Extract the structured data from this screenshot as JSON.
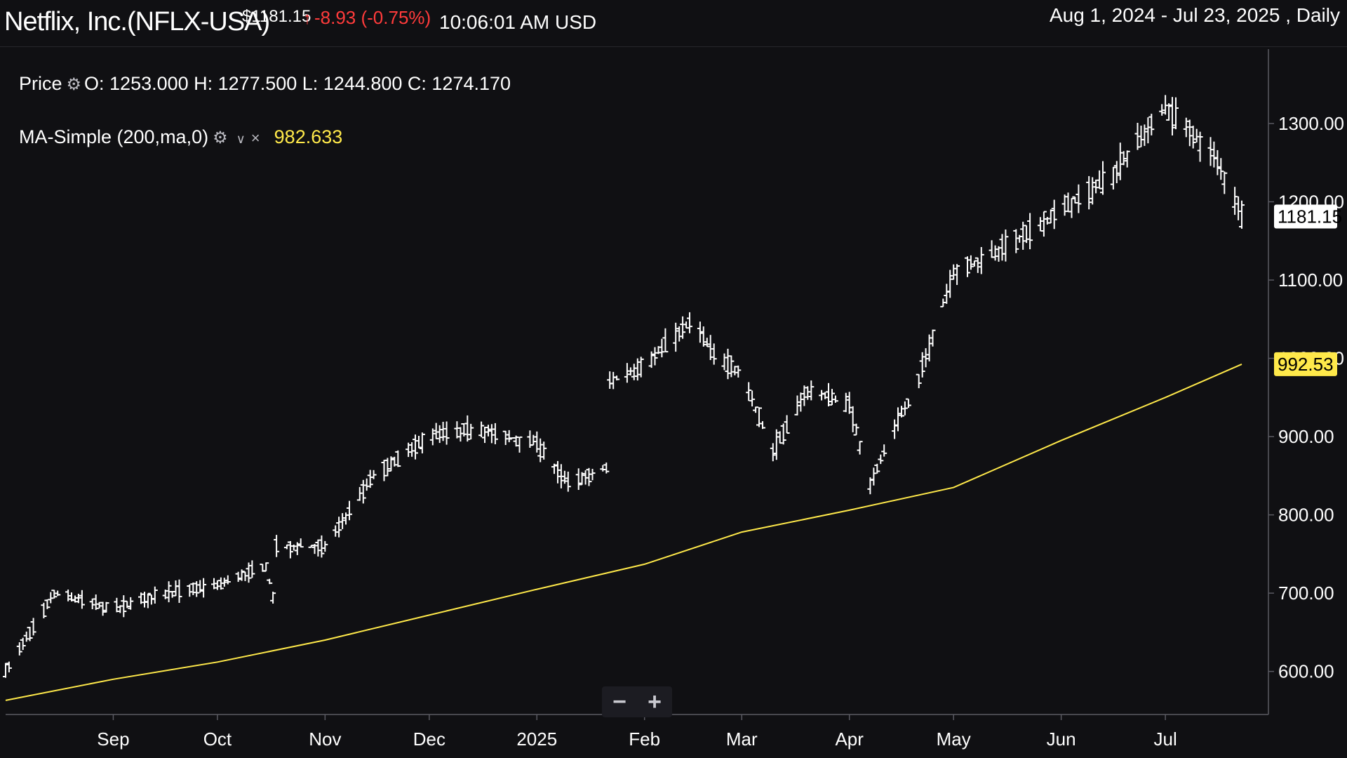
{
  "header": {
    "title": "Netflix, Inc.(NFLX-USA)",
    "price": "$1181.15",
    "change": "-8.93 (-0.75%)",
    "time": "10:06:01 AM USD",
    "range": "Aug 1, 2024 - Jul 23, 2025 , Daily"
  },
  "legend": {
    "price_label": "Price",
    "ohlc": "O: 1253.000 H: 1277.500 L: 1244.800 C: 1274.170",
    "ma_label": "MA-Simple (200,ma,0)",
    "ma_value": "982.633"
  },
  "zoom": {
    "minus": "−",
    "plus": "+"
  },
  "icons": {
    "settings": "gear-icon",
    "dropdown": "chevron-down-icon",
    "close": "close-icon",
    "change_direction": "arrow-up-icon"
  },
  "colors": {
    "background": "#101013",
    "candles": "#ffffff",
    "ma_line": "#ffe94a",
    "negative": "#ff3b3b",
    "last_price_tag": "#ffffff",
    "ma_tag": "#ffe94a"
  },
  "chart_data": {
    "type": "candlestick",
    "ylim": [
      545,
      1395
    ],
    "y_ticks": [
      "600.00",
      "700.00",
      "800.00",
      "900.00",
      "1000.00",
      "1100.00",
      "1200.00",
      "1300.00"
    ],
    "x_ticks": [
      "Sep",
      "Oct",
      "Nov",
      "Dec",
      "2025",
      "Feb",
      "Mar",
      "Apr",
      "May",
      "Jun",
      "Jul"
    ],
    "last_price_label": "1181.15",
    "ma_last_label": "992.53",
    "price_series": {
      "name": "Price",
      "dates": [
        "2024-08-01",
        "2024-08-15",
        "2024-09-01",
        "2024-09-15",
        "2024-10-01",
        "2024-10-15",
        "2024-10-17",
        "2024-10-18",
        "2024-11-01",
        "2024-11-15",
        "2024-12-01",
        "2024-12-15",
        "2025-01-01",
        "2025-01-10",
        "2025-01-21",
        "2025-01-22",
        "2025-02-01",
        "2025-02-15",
        "2025-02-20",
        "2025-03-01",
        "2025-03-10",
        "2025-03-20",
        "2025-04-01",
        "2025-04-07",
        "2025-04-15",
        "2025-04-20",
        "2025-05-01",
        "2025-05-15",
        "2025-06-01",
        "2025-06-15",
        "2025-07-01",
        "2025-07-15",
        "2025-07-23"
      ],
      "values": [
        600,
        700,
        680,
        700,
        710,
        735,
        695,
        760,
        760,
        850,
        900,
        910,
        890,
        840,
        860,
        970,
        990,
        1050,
        1010,
        980,
        880,
        960,
        940,
        840,
        920,
        960,
        1110,
        1140,
        1190,
        1230,
        1320,
        1260,
        1181.15
      ]
    },
    "ma_series": {
      "name": "MA-Simple (200,ma,0)",
      "dates": [
        "2024-08-01",
        "2024-09-01",
        "2024-10-01",
        "2024-11-01",
        "2024-12-01",
        "2025-01-01",
        "2025-02-01",
        "2025-03-01",
        "2025-04-01",
        "2025-05-01",
        "2025-06-01",
        "2025-07-01",
        "2025-07-23"
      ],
      "values": [
        563,
        590,
        612,
        640,
        672,
        705,
        737,
        778,
        806,
        835,
        895,
        950,
        992.53
      ]
    }
  }
}
